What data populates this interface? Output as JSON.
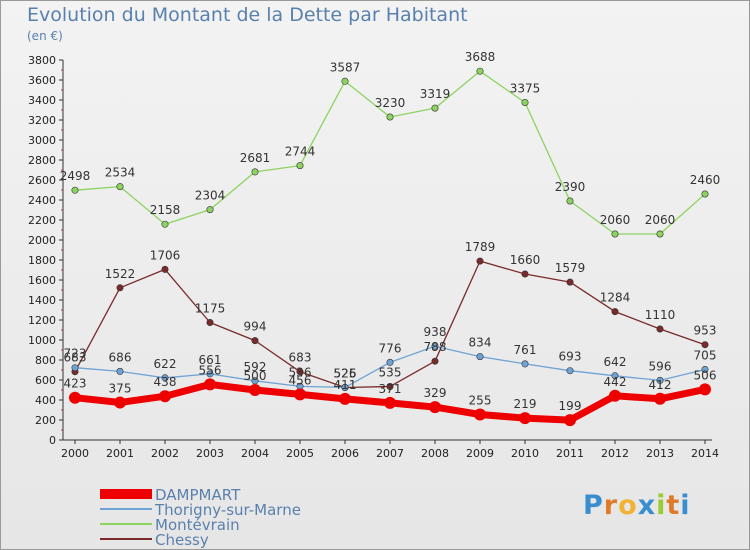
{
  "title": "Evolution du Montant de la Dette par Habitant",
  "unit": "(en €)",
  "logo": {
    "letters": [
      "P",
      "r",
      "o",
      "x",
      "i",
      "t",
      "i"
    ],
    "colors": [
      "#3a8ed0",
      "#e07a2a",
      "#f2b233",
      "#3a8ed0",
      "#9acd32",
      "#e07a2a",
      "#3a8ed0"
    ]
  },
  "chart_data": {
    "type": "line",
    "x": [
      "2000",
      "2001",
      "2002",
      "2003",
      "2004",
      "2005",
      "2006",
      "2007",
      "2008",
      "2009",
      "2010",
      "2011",
      "2012",
      "2013",
      "2014"
    ],
    "ylim": [
      0,
      3800
    ],
    "yticks": [
      0,
      200,
      400,
      600,
      800,
      1000,
      1200,
      1400,
      1600,
      1800,
      2000,
      2200,
      2400,
      2600,
      2800,
      3000,
      3200,
      3400,
      3600,
      3800
    ],
    "grid": false,
    "legend": "bottom-left",
    "series": [
      {
        "name": "DAMPMART",
        "color": "#ee0000",
        "values": [
          423,
          375,
          438,
          556,
          500,
          456,
          411,
          371,
          329,
          255,
          219,
          199,
          442,
          412,
          506
        ]
      },
      {
        "name": "Thorigny-sur-Marne",
        "color": "#6fa3d4",
        "values": [
          723,
          686,
          622,
          661,
          592,
          536,
          526,
          776,
          938,
          834,
          761,
          693,
          642,
          596,
          705
        ]
      },
      {
        "name": "Montévrain",
        "color": "#8dd35f",
        "values": [
          2498,
          2534,
          2158,
          2304,
          2681,
          2744,
          3587,
          3230,
          3319,
          3688,
          3375,
          2390,
          2060,
          2060,
          2460
        ]
      },
      {
        "name": "Chessy",
        "color": "#7a2a2a",
        "values": [
          683,
          1522,
          1706,
          1175,
          994,
          683,
          525,
          535,
          788,
          1789,
          1660,
          1579,
          1284,
          1110,
          953
        ]
      }
    ]
  }
}
